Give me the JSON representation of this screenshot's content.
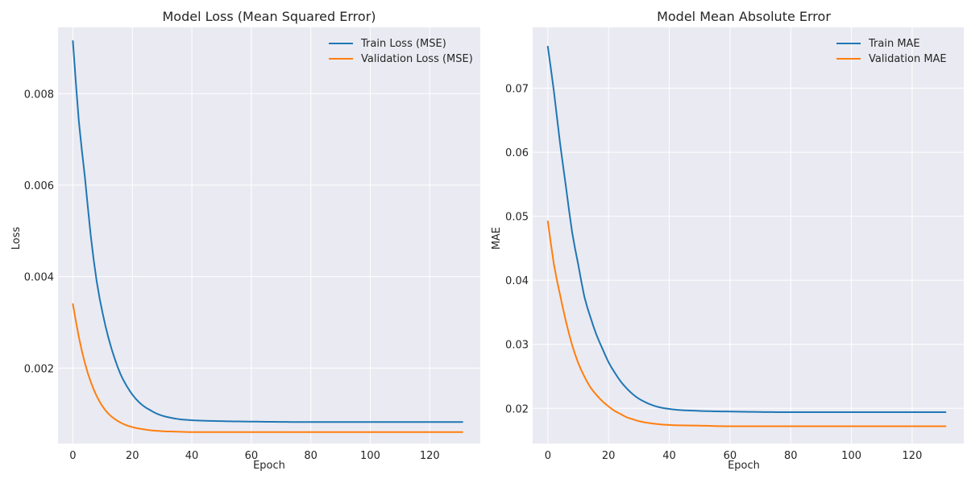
{
  "colors": {
    "train": "#1f77b4",
    "validation": "#ff7f0e",
    "plot_background": "#eaeaf2",
    "grid": "#ffffff"
  },
  "chart_data": [
    {
      "type": "line",
      "title": "Model Loss (Mean Squared Error)",
      "xlabel": "Epoch",
      "ylabel": "Loss",
      "xlim": [
        -5,
        137
      ],
      "ylim": [
        0.00035,
        0.00945
      ],
      "xticks": [
        0,
        20,
        40,
        60,
        80,
        100,
        120
      ],
      "yticks": [
        0.002,
        0.004,
        0.006,
        0.008
      ],
      "ytick_labels": [
        "0.002",
        "0.004",
        "0.006",
        "0.008"
      ],
      "grid": true,
      "legend_position": "top-right",
      "epochs": 132,
      "series": [
        {
          "name": "Train Loss (MSE)",
          "color": "#1f77b4",
          "x": [
            0,
            2,
            4,
            6,
            8,
            10,
            12,
            14,
            16,
            18,
            20,
            22,
            24,
            26,
            28,
            30,
            35,
            40,
            50,
            60,
            80,
            100,
            120,
            131
          ],
          "y": [
            0.00915,
            0.0074,
            0.0062,
            0.0049,
            0.0039,
            0.0032,
            0.00265,
            0.00222,
            0.00187,
            0.00162,
            0.00142,
            0.00127,
            0.00116,
            0.00108,
            0.00101,
            0.00096,
            0.00089,
            0.00086,
            0.00084,
            0.00083,
            0.00082,
            0.00082,
            0.00082,
            0.00082
          ]
        },
        {
          "name": "Validation Loss (MSE)",
          "color": "#ff7f0e",
          "x": [
            0,
            2,
            4,
            6,
            8,
            10,
            12,
            14,
            16,
            18,
            20,
            22,
            24,
            26,
            28,
            30,
            35,
            40,
            50,
            60,
            80,
            100,
            120,
            131
          ],
          "y": [
            0.0034,
            0.00268,
            0.00212,
            0.0017,
            0.00139,
            0.00116,
            0.001,
            0.00089,
            0.00081,
            0.00075,
            0.00071,
            0.00068,
            0.00066,
            0.00064,
            0.00063,
            0.00062,
            0.00061,
            0.0006,
            0.0006,
            0.0006,
            0.0006,
            0.0006,
            0.0006,
            0.0006
          ]
        }
      ]
    },
    {
      "type": "line",
      "title": "Model Mean Absolute Error",
      "xlabel": "Epoch",
      "ylabel": "MAE",
      "xlim": [
        -5,
        137
      ],
      "ylim": [
        0.0145,
        0.0795
      ],
      "xticks": [
        0,
        20,
        40,
        60,
        80,
        100,
        120
      ],
      "yticks": [
        0.02,
        0.03,
        0.04,
        0.05,
        0.06,
        0.07
      ],
      "ytick_labels": [
        "0.02",
        "0.03",
        "0.04",
        "0.05",
        "0.06",
        "0.07"
      ],
      "grid": true,
      "legend_position": "top-right",
      "epochs": 132,
      "series": [
        {
          "name": "Train MAE",
          "color": "#1f77b4",
          "x": [
            0,
            2,
            4,
            6,
            8,
            10,
            12,
            14,
            16,
            18,
            20,
            22,
            24,
            26,
            28,
            30,
            35,
            40,
            50,
            60,
            80,
            100,
            120,
            131
          ],
          "y": [
            0.0765,
            0.0695,
            0.0615,
            0.0545,
            0.0475,
            0.0425,
            0.0375,
            0.0343,
            0.0315,
            0.0293,
            0.0272,
            0.0256,
            0.0242,
            0.0231,
            0.0222,
            0.0215,
            0.0204,
            0.0199,
            0.0196,
            0.0195,
            0.0194,
            0.0194,
            0.0194,
            0.0194
          ]
        },
        {
          "name": "Validation MAE",
          "color": "#ff7f0e",
          "x": [
            0,
            2,
            4,
            6,
            8,
            10,
            12,
            14,
            16,
            18,
            20,
            22,
            24,
            26,
            28,
            30,
            35,
            40,
            50,
            60,
            80,
            100,
            120,
            131
          ],
          "y": [
            0.0492,
            0.0425,
            0.0378,
            0.0335,
            0.0299,
            0.0271,
            0.025,
            0.0233,
            0.0221,
            0.0211,
            0.0203,
            0.0196,
            0.0191,
            0.0186,
            0.0183,
            0.018,
            0.0176,
            0.0174,
            0.0173,
            0.0172,
            0.0172,
            0.0172,
            0.0172,
            0.0172
          ]
        }
      ]
    }
  ]
}
